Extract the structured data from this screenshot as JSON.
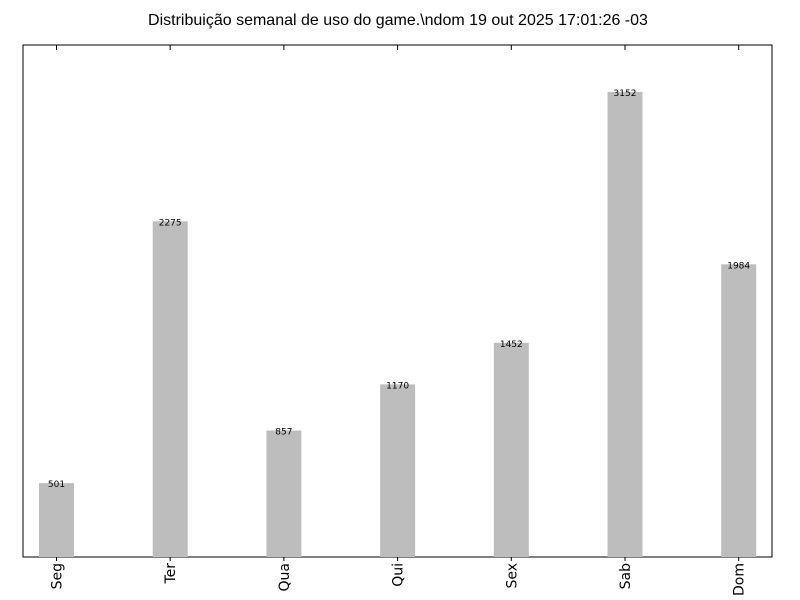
{
  "chart_data": {
    "type": "bar",
    "title": "Distribuição semanal de uso do game.\\ndom 19 out 2025 17:01:26 -03",
    "categories": [
      "Seg",
      "Ter",
      "Qua",
      "Qui",
      "Sex",
      "Sab",
      "Dom"
    ],
    "values": [
      501,
      2275,
      857,
      1170,
      1452,
      3152,
      1984
    ],
    "xlabel": "",
    "ylabel": "",
    "ylim": [
      0,
      3470
    ],
    "grid": false,
    "bar_color": "#bdbdbd",
    "y_ticks_visible": false,
    "x_tick_label_rotation": "vertical"
  }
}
